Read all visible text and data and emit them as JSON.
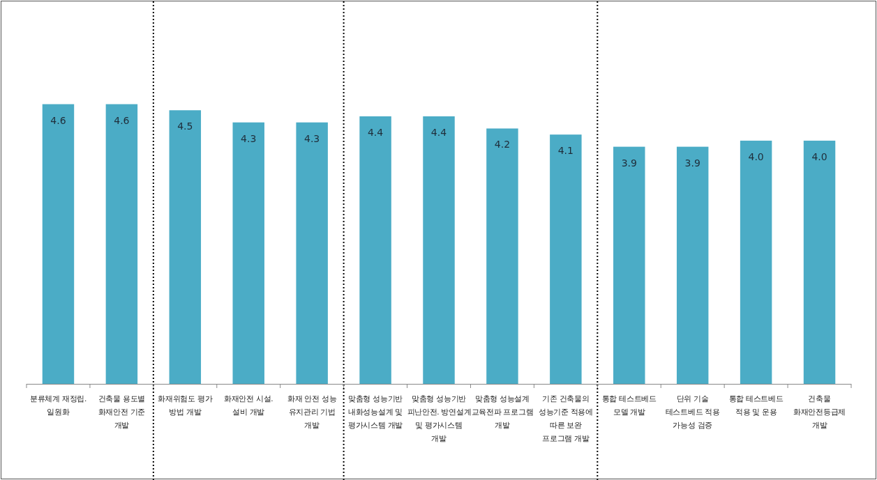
{
  "chart_data": {
    "type": "bar",
    "categories": [
      "분류체계 재정립.\n일원화",
      "건축물 용도별\n화재안전 기준\n개발",
      "화재위험도 평가\n방법 개발",
      "화재안전 시설.\n설비 개발",
      "화재 안전 성능\n유지관리 기법\n개발",
      "맞춤형 성능기반\n내화성능설계 및\n평가시스템 개발",
      "맞춤형 성능기반\n피난안전. 방연설계\n및 평가시스템\n개발",
      "맞춤형 성능설계\n교육전파 프로그램\n개발",
      "기존 건축물의\n성능기준 적용에\n따른 보완\n프로그램 개발",
      "통합 테스트베드\n모델 개발",
      "단위 기술\n테스트베드 적용\n가능성 검증",
      "통합 테스트베드\n적용 및 운용",
      "건축물\n화재안전등급제\n개발"
    ],
    "values": [
      4.6,
      4.6,
      4.5,
      4.3,
      4.3,
      4.4,
      4.4,
      4.2,
      4.1,
      3.9,
      3.9,
      4.0,
      4.0
    ],
    "color": "#4bacc6",
    "value_labels": [
      "4.6",
      "4.6",
      "4.5",
      "4.3",
      "4.3",
      "4.4",
      "4.4",
      "4.2",
      "4.1",
      "3.9",
      "3.9",
      "4.0",
      "4.0"
    ],
    "data_labels": false
  }
}
